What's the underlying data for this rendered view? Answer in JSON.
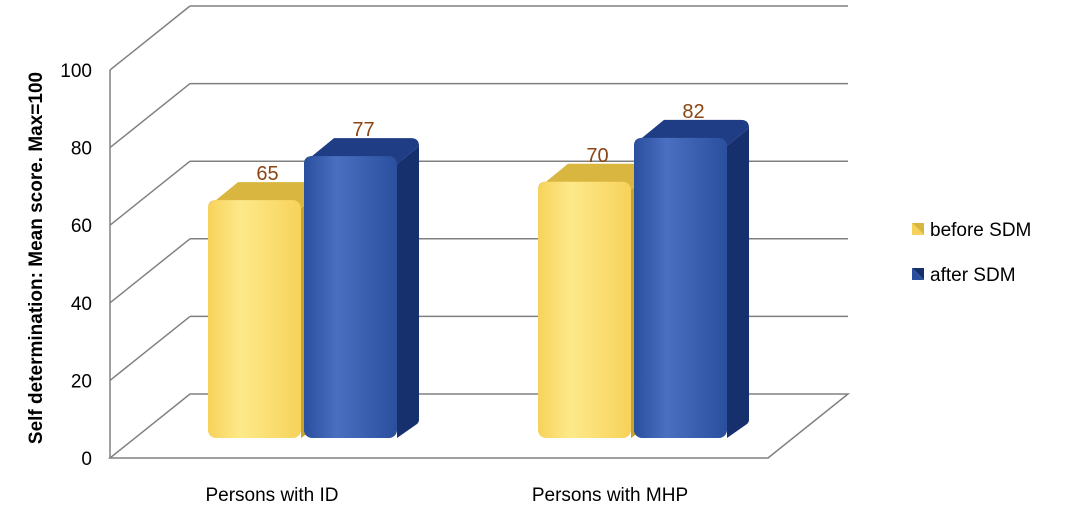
{
  "chart_data": {
    "type": "bar",
    "title": "",
    "xlabel": "",
    "ylabel": "Self determination: Mean score. Max=100",
    "categories": [
      "Persons with ID",
      "Persons with MHP"
    ],
    "series": [
      {
        "name": "before SDM",
        "values": [
          65,
          70
        ]
      },
      {
        "name": "after SDM",
        "values": [
          77,
          82
        ]
      }
    ],
    "ylim": [
      0,
      100
    ],
    "yticks": [
      "0",
      "20",
      "40",
      "60",
      "80",
      "100"
    ],
    "data_labels": [
      [
        "65",
        "70"
      ],
      [
        "77",
        "82"
      ]
    ],
    "grid": true,
    "legend_position": "right",
    "three_d": true
  },
  "colors": {
    "before_front": "#f7d25a",
    "before_light": "#fde98a",
    "before_side": "#c9a22e",
    "before_top": "#d9b640",
    "after_front": "#2a4f9e",
    "after_light": "#4b6fc0",
    "after_side": "#16306e",
    "after_top": "#1f3d84",
    "label": "#8b4513",
    "grid": "#808080"
  }
}
